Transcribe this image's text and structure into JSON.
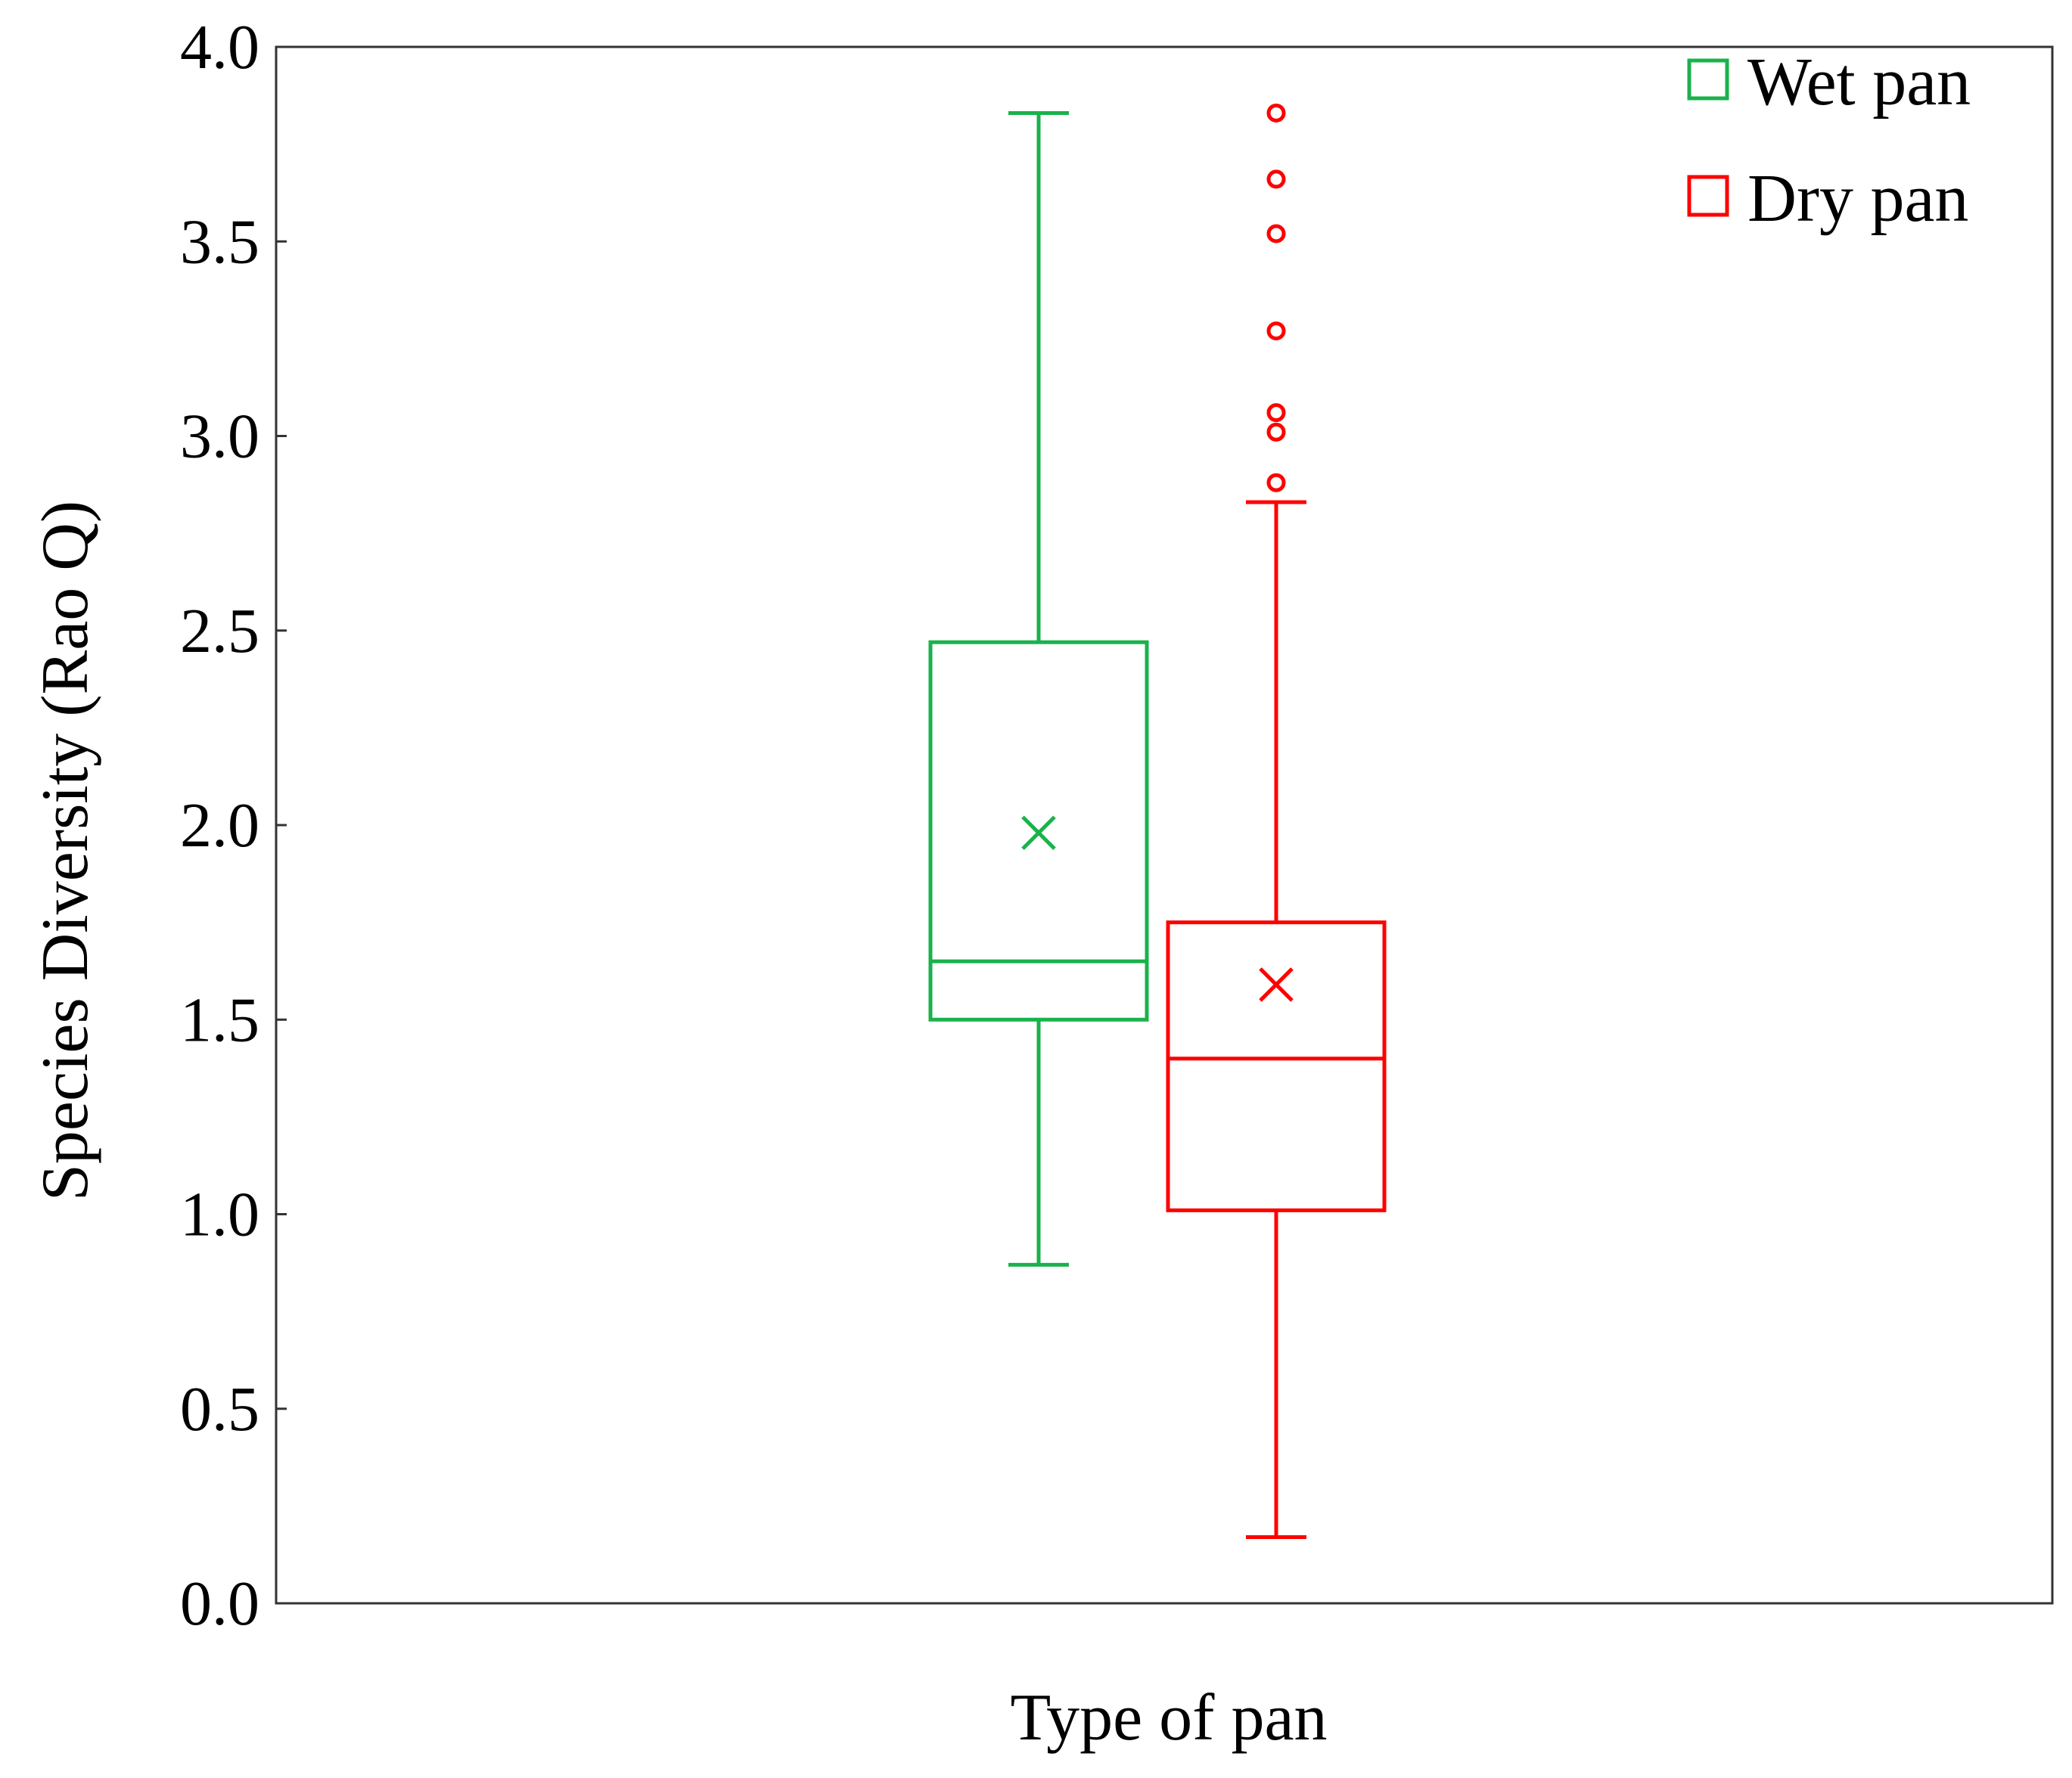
{
  "chart_data": {
    "type": "box",
    "title": "",
    "xlabel": "Type of pan",
    "ylabel": "Species  Diversity (Rao Q)",
    "ylim": [
      0,
      4
    ],
    "yticks": [
      "0.0",
      "0.5",
      "1.0",
      "1.5",
      "2.0",
      "2.5",
      "3.0",
      "3.5",
      "4.0"
    ],
    "grid": false,
    "legend_position": "top-right",
    "series": [
      {
        "name": "Wet pan",
        "color": "#19b24b",
        "whisker_low": 0.87,
        "q1": 1.5,
        "median": 1.65,
        "q3": 2.47,
        "whisker_high": 3.83,
        "mean": 1.98,
        "outliers": []
      },
      {
        "name": "Dry pan",
        "color": "#ff0000",
        "whisker_low": 0.17,
        "q1": 1.01,
        "median": 1.4,
        "q3": 1.75,
        "whisker_high": 2.83,
        "mean": 1.59,
        "outliers": [
          2.88,
          3.01,
          3.06,
          3.27,
          3.52,
          3.66,
          3.83
        ]
      }
    ]
  }
}
